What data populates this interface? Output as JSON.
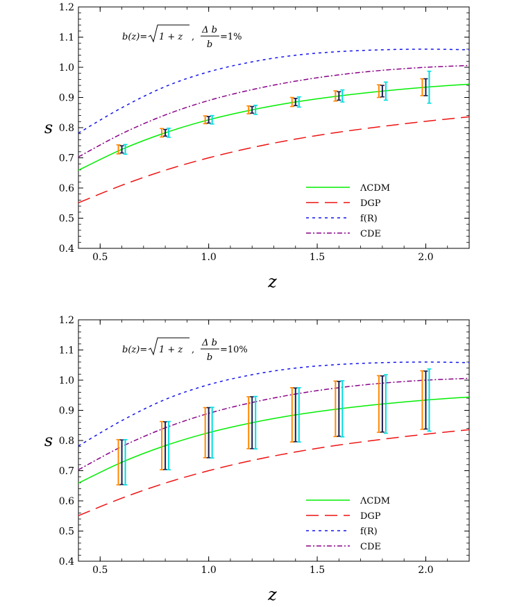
{
  "chart_data": [
    {
      "type": "line",
      "title": "",
      "annotation": {
        "b_of_z": "b(z)=",
        "radicand": "1 + z",
        "sep": ",",
        "numerator": "Δ b",
        "denominator": "b",
        "rhs": "=1%"
      },
      "xlabel": "z",
      "ylabel": "s",
      "xlim": [
        0.4,
        2.2
      ],
      "ylim": [
        0.4,
        1.2
      ],
      "xticks": [
        0.5,
        1.0,
        1.5,
        2.0
      ],
      "xtick_labels": [
        "0.5",
        "1.0",
        "1.5",
        "2.0"
      ],
      "yticks": [
        0.4,
        0.5,
        0.6,
        0.7,
        0.8,
        0.9,
        1.0,
        1.1,
        1.2
      ],
      "ytick_labels": [
        "0.4",
        "0.5",
        "0.6",
        "0.7",
        "0.8",
        "0.9",
        "1.0",
        "1.1",
        "1.2"
      ],
      "series": [
        {
          "name": "ΛCDM",
          "color": "#00ee00",
          "dash": "solid",
          "x": [
            0.4,
            0.6,
            0.8,
            1.0,
            1.2,
            1.4,
            1.6,
            1.8,
            2.0,
            2.2
          ],
          "y": [
            0.659,
            0.728,
            0.783,
            0.826,
            0.859,
            0.885,
            0.905,
            0.921,
            0.934,
            0.944
          ]
        },
        {
          "name": "DGP",
          "color": "#ee1111",
          "dash": "long",
          "x": [
            0.4,
            0.6,
            0.8,
            1.0,
            1.2,
            1.4,
            1.6,
            1.8,
            2.0,
            2.2
          ],
          "y": [
            0.551,
            0.609,
            0.659,
            0.7,
            0.734,
            0.762,
            0.785,
            0.804,
            0.821,
            0.836
          ]
        },
        {
          "name": "f(R)",
          "color": "#1111ee",
          "dash": "short",
          "x": [
            0.4,
            0.6,
            0.8,
            1.0,
            1.2,
            1.4,
            1.6,
            1.8,
            2.0,
            2.2
          ],
          "y": [
            0.782,
            0.866,
            0.936,
            0.985,
            1.018,
            1.04,
            1.052,
            1.058,
            1.06,
            1.058
          ]
        },
        {
          "name": "CDE",
          "color": "#880088",
          "dash": "dashdot",
          "x": [
            0.4,
            0.6,
            0.8,
            1.0,
            1.2,
            1.4,
            1.6,
            1.8,
            2.0,
            2.2
          ],
          "y": [
            0.703,
            0.78,
            0.842,
            0.89,
            0.926,
            0.954,
            0.975,
            0.99,
            1.0,
            1.006
          ]
        }
      ],
      "error_bars": {
        "z": [
          0.6,
          0.8,
          1.0,
          1.2,
          1.4,
          1.6,
          1.8,
          2.0
        ],
        "center": [
          0.728,
          0.783,
          0.826,
          0.859,
          0.885,
          0.905,
          0.921,
          0.934
        ],
        "sets": [
          {
            "color": "#ff8800",
            "half_width": [
              0.015,
              0.014,
              0.013,
              0.013,
              0.015,
              0.017,
              0.021,
              0.028
            ]
          },
          {
            "color": "#1a1a4d",
            "half_width": [
              0.012,
              0.011,
              0.011,
              0.011,
              0.012,
              0.014,
              0.019,
              0.028
            ]
          },
          {
            "color": "#00dddd",
            "half_width": [
              0.016,
              0.015,
              0.014,
              0.015,
              0.017,
              0.02,
              0.03,
              0.053
            ]
          }
        ]
      },
      "legend": {
        "position": "bottom-right",
        "entries": [
          "ΛCDM",
          "DGP",
          "f(R)",
          "CDE"
        ]
      }
    },
    {
      "type": "line",
      "title": "",
      "annotation": {
        "b_of_z": "b(z)=",
        "radicand": "1 + z",
        "sep": ",",
        "numerator": "Δ b",
        "denominator": "b",
        "rhs": "=10%"
      },
      "xlabel": "z",
      "ylabel": "s",
      "xlim": [
        0.4,
        2.2
      ],
      "ylim": [
        0.4,
        1.2
      ],
      "xticks": [
        0.5,
        1.0,
        1.5,
        2.0
      ],
      "xtick_labels": [
        "0.5",
        "1.0",
        "1.5",
        "2.0"
      ],
      "yticks": [
        0.4,
        0.5,
        0.6,
        0.7,
        0.8,
        0.9,
        1.0,
        1.1,
        1.2
      ],
      "ytick_labels": [
        "0.4",
        "0.5",
        "0.6",
        "0.7",
        "0.8",
        "0.9",
        "1.0",
        "1.1",
        "1.2"
      ],
      "series": [
        {
          "name": "ΛCDM",
          "color": "#00ee00",
          "dash": "solid",
          "x": [
            0.4,
            0.6,
            0.8,
            1.0,
            1.2,
            1.4,
            1.6,
            1.8,
            2.0,
            2.2
          ],
          "y": [
            0.659,
            0.728,
            0.783,
            0.826,
            0.859,
            0.885,
            0.905,
            0.921,
            0.934,
            0.944
          ]
        },
        {
          "name": "DGP",
          "color": "#ee1111",
          "dash": "long",
          "x": [
            0.4,
            0.6,
            0.8,
            1.0,
            1.2,
            1.4,
            1.6,
            1.8,
            2.0,
            2.2
          ],
          "y": [
            0.551,
            0.609,
            0.659,
            0.7,
            0.734,
            0.762,
            0.785,
            0.804,
            0.821,
            0.836
          ]
        },
        {
          "name": "f(R)",
          "color": "#1111ee",
          "dash": "short",
          "x": [
            0.4,
            0.6,
            0.8,
            1.0,
            1.2,
            1.4,
            1.6,
            1.8,
            2.0,
            2.2
          ],
          "y": [
            0.782,
            0.866,
            0.936,
            0.985,
            1.018,
            1.04,
            1.052,
            1.058,
            1.06,
            1.058
          ]
        },
        {
          "name": "CDE",
          "color": "#880088",
          "dash": "dashdot",
          "x": [
            0.4,
            0.6,
            0.8,
            1.0,
            1.2,
            1.4,
            1.6,
            1.8,
            2.0,
            2.2
          ],
          "y": [
            0.703,
            0.78,
            0.842,
            0.89,
            0.926,
            0.954,
            0.975,
            0.99,
            1.0,
            1.006
          ]
        }
      ],
      "error_bars": {
        "z": [
          0.6,
          0.8,
          1.0,
          1.2,
          1.4,
          1.6,
          1.8,
          2.0
        ],
        "center": [
          0.728,
          0.783,
          0.826,
          0.859,
          0.885,
          0.905,
          0.921,
          0.934
        ],
        "sets": [
          {
            "color": "#ff8800",
            "half_width": [
              0.075,
              0.08,
              0.083,
              0.086,
              0.09,
              0.092,
              0.094,
              0.097
            ]
          },
          {
            "color": "#1a1a4d",
            "half_width": [
              0.074,
              0.079,
              0.083,
              0.086,
              0.089,
              0.091,
              0.093,
              0.096
            ]
          },
          {
            "color": "#00dddd",
            "half_width": [
              0.075,
              0.08,
              0.084,
              0.087,
              0.09,
              0.093,
              0.097,
              0.103
            ]
          }
        ]
      },
      "legend": {
        "position": "bottom-right",
        "entries": [
          "ΛCDM",
          "DGP",
          "f(R)",
          "CDE"
        ]
      }
    }
  ]
}
